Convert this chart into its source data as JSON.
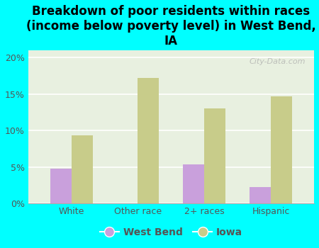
{
  "title": "Breakdown of poor residents within races\n(income below poverty level) in West Bend,\nIA",
  "categories": [
    "White",
    "Other race",
    "2+ races",
    "Hispanic"
  ],
  "west_bend_values": [
    4.8,
    0.0,
    5.3,
    2.2
  ],
  "iowa_values": [
    9.3,
    17.2,
    13.0,
    14.7
  ],
  "west_bend_color": "#c9a0dc",
  "iowa_color": "#c8cc8a",
  "figure_bg_color": "#00ffff",
  "plot_bg_color": "#e8f0e0",
  "ylim": [
    0,
    21
  ],
  "yticks": [
    0,
    5,
    10,
    15,
    20
  ],
  "ytick_labels": [
    "0%",
    "5%",
    "10%",
    "15%",
    "20%"
  ],
  "bar_width": 0.32,
  "legend_labels": [
    "West Bend",
    "Iowa"
  ],
  "watermark": "City-Data.com",
  "title_fontsize": 12,
  "tick_fontsize": 9,
  "legend_fontsize": 10
}
